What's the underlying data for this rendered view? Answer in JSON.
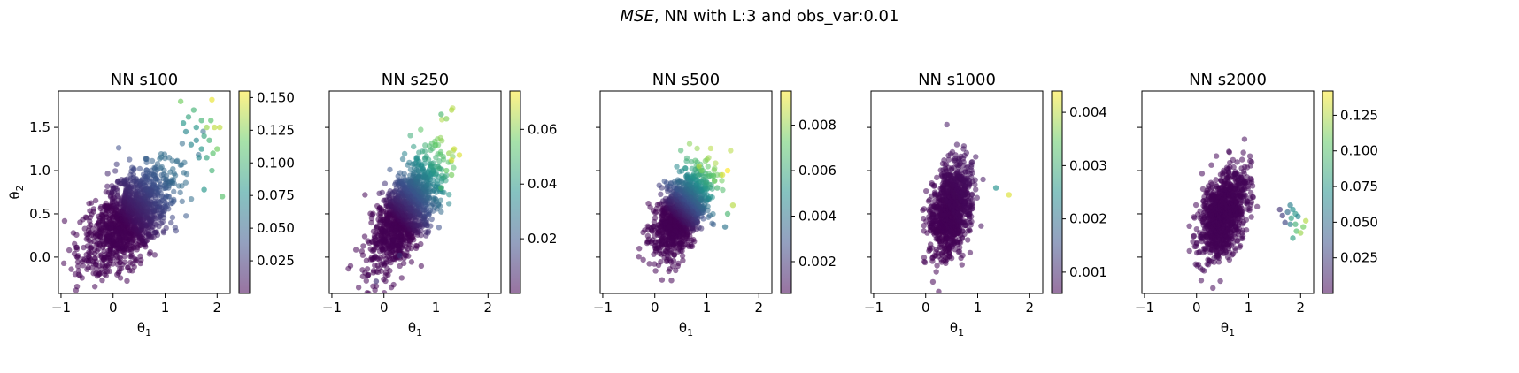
{
  "figure": {
    "suptitle_italic": "MSE",
    "suptitle_rest": ", NN with L:3 and obs_var:0.01",
    "colormap": "viridis",
    "colormap_stops": [
      "#440154",
      "#3b528b",
      "#21918c",
      "#5ec962",
      "#fde725"
    ],
    "point_alpha": 0.55
  },
  "chart_data": [
    {
      "type": "scatter",
      "title": "NN s100",
      "xlabel": "θ1",
      "ylabel": "θ2",
      "xlim": [
        -1.05,
        2.25
      ],
      "ylim": [
        -0.42,
        1.92
      ],
      "xticks": [
        -1,
        0,
        1,
        2
      ],
      "yticks": [
        0.0,
        0.5,
        1.0,
        1.5
      ],
      "ytick_labels": [
        "0.0",
        "0.5",
        "1.0",
        "1.5"
      ],
      "colorbar": {
        "range": [
          0.0,
          0.155
        ],
        "ticks": [
          0.025,
          0.05,
          0.075,
          0.1,
          0.125,
          0.15
        ],
        "tick_labels": [
          "0.025",
          "0.050",
          "0.075",
          "0.100",
          "0.125",
          "0.150"
        ]
      },
      "cloud": {
        "center": [
          0.3,
          0.45
        ],
        "sd": [
          0.42,
          0.3
        ],
        "rho": 0.6,
        "n": 1300,
        "cmax": 0.055,
        "slope": [
          0.03,
          0.04
        ]
      },
      "points": [
        [
          1.3,
          1.8,
          0.12
        ],
        [
          1.45,
          1.62,
          0.09
        ],
        [
          1.55,
          1.7,
          0.1
        ],
        [
          1.6,
          1.5,
          0.08
        ],
        [
          1.7,
          1.58,
          0.1
        ],
        [
          1.8,
          1.5,
          0.13
        ],
        [
          1.9,
          1.82,
          0.15
        ],
        [
          1.88,
          1.58,
          0.11
        ],
        [
          1.95,
          1.5,
          0.14
        ],
        [
          1.75,
          1.4,
          0.09
        ],
        [
          1.85,
          1.35,
          0.1
        ],
        [
          1.92,
          1.2,
          0.11
        ],
        [
          2.0,
          1.25,
          0.12
        ],
        [
          2.05,
          1.5,
          0.14
        ],
        [
          1.8,
          1.15,
          0.09
        ],
        [
          1.7,
          1.25,
          0.08
        ],
        [
          1.9,
          1.0,
          0.1
        ],
        [
          1.75,
          0.78,
          0.08
        ],
        [
          2.1,
          0.7,
          0.11
        ],
        [
          1.6,
          1.35,
          0.07
        ],
        [
          1.5,
          1.3,
          0.07
        ],
        [
          1.65,
          1.15,
          0.07
        ],
        [
          1.4,
          1.45,
          0.07
        ],
        [
          1.35,
          1.55,
          0.08
        ]
      ]
    },
    {
      "type": "scatter",
      "title": "NN s250",
      "xlabel": "θ1",
      "xlim": [
        -1.05,
        2.25
      ],
      "ylim": [
        -0.42,
        1.92
      ],
      "xticks": [
        -1,
        0,
        1,
        2
      ],
      "yticks": [
        0.0,
        0.5,
        1.0,
        1.5
      ],
      "colorbar": {
        "range": [
          0.0,
          0.074
        ],
        "ticks": [
          0.02,
          0.04,
          0.06
        ],
        "tick_labels": [
          "0.02",
          "0.04",
          "0.06"
        ]
      },
      "cloud": {
        "center": [
          0.4,
          0.5
        ],
        "sd": [
          0.33,
          0.32
        ],
        "rho": 0.65,
        "n": 1200,
        "cmax": 0.065,
        "slope": [
          0.022,
          0.035
        ]
      },
      "points": [
        [
          1.3,
          1.7,
          0.065
        ],
        [
          1.2,
          1.6,
          0.06
        ],
        [
          1.1,
          1.65,
          0.05
        ],
        [
          1.25,
          1.2,
          0.062
        ],
        [
          1.3,
          1.12,
          0.07
        ],
        [
          1.35,
          1.25,
          0.068
        ],
        [
          1.2,
          1.0,
          0.055
        ],
        [
          1.3,
          0.95,
          0.058
        ],
        [
          1.1,
          0.8,
          0.05
        ],
        [
          1.45,
          1.18,
          0.07
        ],
        [
          -0.15,
          -0.28,
          0.01
        ],
        [
          0.3,
          0.02,
          0.01
        ]
      ]
    },
    {
      "type": "scatter",
      "title": "NN s500",
      "xlabel": "θ1",
      "xlim": [
        -1.05,
        2.25
      ],
      "ylim": [
        -0.42,
        1.92
      ],
      "xticks": [
        -1,
        0,
        1,
        2
      ],
      "yticks": [
        0.0,
        0.5,
        1.0,
        1.5
      ],
      "colorbar": {
        "range": [
          0.0006,
          0.0095
        ],
        "ticks": [
          0.002,
          0.004,
          0.006,
          0.008
        ],
        "tick_labels": [
          "0.002",
          "0.004",
          "0.006",
          "0.008"
        ]
      },
      "cloud": {
        "center": [
          0.5,
          0.5
        ],
        "sd": [
          0.26,
          0.24
        ],
        "rho": 0.55,
        "n": 1100,
        "cmax": 0.0085,
        "slope": [
          0.0035,
          0.006
        ]
      },
      "points": [
        [
          1.4,
          1.0,
          0.0095
        ],
        [
          1.3,
          0.95,
          0.009
        ],
        [
          1.15,
          0.88,
          0.0075
        ],
        [
          1.2,
          0.8,
          0.0065
        ],
        [
          1.5,
          0.6,
          0.0085
        ],
        [
          1.4,
          0.5,
          0.0065
        ],
        [
          1.35,
          0.35,
          0.004
        ],
        [
          0.85,
          1.05,
          0.0085
        ],
        [
          0.9,
          1.0,
          0.0075
        ]
      ]
    },
    {
      "type": "scatter",
      "title": "NN s1000",
      "xlabel": "θ1",
      "xlim": [
        -1.05,
        2.25
      ],
      "ylim": [
        -0.42,
        1.92
      ],
      "xticks": [
        -1,
        0,
        1,
        2
      ],
      "yticks": [
        0.0,
        0.5,
        1.0,
        1.5
      ],
      "colorbar": {
        "range": [
          0.0006,
          0.0044
        ],
        "ticks": [
          0.001,
          0.002,
          0.003,
          0.004
        ],
        "tick_labels": [
          "0.001",
          "0.002",
          "0.003",
          "0.004"
        ]
      },
      "cloud": {
        "center": [
          0.5,
          0.55
        ],
        "sd": [
          0.2,
          0.27
        ],
        "rho": 0.35,
        "n": 1000,
        "cmax": 0.0011,
        "slope": [
          0.0001,
          0.0001
        ]
      },
      "points": [
        [
          1.35,
          0.8,
          0.0025
        ],
        [
          1.6,
          0.72,
          0.0042
        ]
      ]
    },
    {
      "type": "scatter",
      "title": "NN s2000",
      "xlabel": "θ1",
      "xlim": [
        -1.05,
        2.25
      ],
      "ylim": [
        -0.42,
        1.92
      ],
      "xticks": [
        -1,
        0,
        1,
        2
      ],
      "yticks": [
        0.0,
        0.5,
        1.0,
        1.5
      ],
      "colorbar": {
        "range": [
          0.0,
          0.142
        ],
        "ticks": [
          0.025,
          0.05,
          0.075,
          0.1,
          0.125
        ],
        "tick_labels": [
          "0.025",
          "0.050",
          "0.075",
          "0.100",
          "0.125"
        ]
      },
      "cloud": {
        "center": [
          0.5,
          0.5
        ],
        "sd": [
          0.22,
          0.25
        ],
        "rho": 0.4,
        "n": 1100,
        "cmax": 0.012,
        "slope": [
          0.0,
          0.0
        ]
      },
      "points": [
        [
          1.8,
          0.6,
          0.06
        ],
        [
          1.85,
          0.55,
          0.07
        ],
        [
          1.9,
          0.5,
          0.075
        ],
        [
          1.82,
          0.45,
          0.08
        ],
        [
          1.95,
          0.47,
          0.065
        ],
        [
          1.75,
          0.52,
          0.05
        ],
        [
          1.8,
          0.38,
          0.06
        ],
        [
          1.9,
          0.38,
          0.09
        ],
        [
          1.92,
          0.3,
          0.1
        ],
        [
          2.0,
          0.28,
          0.12
        ],
        [
          2.05,
          0.35,
          0.11
        ],
        [
          2.1,
          0.42,
          0.125
        ],
        [
          1.85,
          0.22,
          0.08
        ],
        [
          1.6,
          0.55,
          0.02
        ],
        [
          1.65,
          0.48,
          0.025
        ],
        [
          1.7,
          0.4,
          0.03
        ]
      ]
    }
  ]
}
